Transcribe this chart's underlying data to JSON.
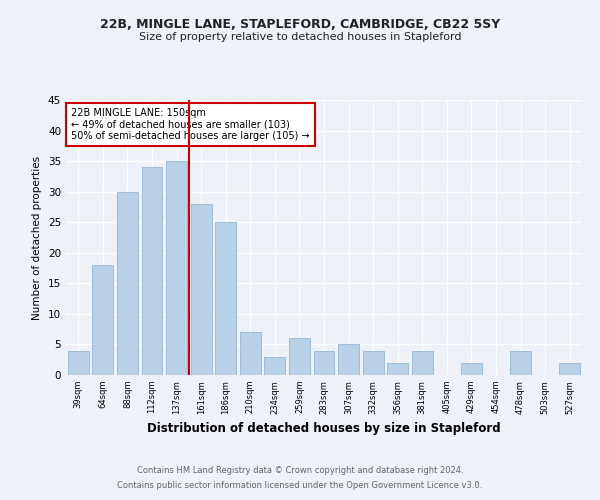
{
  "title1": "22B, MINGLE LANE, STAPLEFORD, CAMBRIDGE, CB22 5SY",
  "title2": "Size of property relative to detached houses in Stapleford",
  "xlabel": "Distribution of detached houses by size in Stapleford",
  "ylabel": "Number of detached properties",
  "footer1": "Contains HM Land Registry data © Crown copyright and database right 2024.",
  "footer2": "Contains public sector information licensed under the Open Government Licence v3.0.",
  "annotation_line1": "22B MINGLE LANE: 150sqm",
  "annotation_line2": "← 49% of detached houses are smaller (103)",
  "annotation_line3": "50% of semi-detached houses are larger (105) →",
  "categories": [
    "39sqm",
    "64sqm",
    "88sqm",
    "112sqm",
    "137sqm",
    "161sqm",
    "186sqm",
    "210sqm",
    "234sqm",
    "259sqm",
    "283sqm",
    "307sqm",
    "332sqm",
    "356sqm",
    "381sqm",
    "405sqm",
    "429sqm",
    "454sqm",
    "478sqm",
    "503sqm",
    "527sqm"
  ],
  "values": [
    4,
    18,
    30,
    34,
    35,
    28,
    25,
    7,
    3,
    6,
    4,
    5,
    4,
    2,
    4,
    0,
    2,
    0,
    4,
    0,
    2
  ],
  "bar_color": "#b8d0e8",
  "bar_edge_color": "#8ab0d0",
  "vline_x_index": 4.5,
  "vline_color": "#cc0000",
  "annotation_box_color": "#cc0000",
  "background_color": "#eef2f8",
  "grid_color": "#ffffff",
  "ylim": [
    0,
    45
  ],
  "yticks": [
    0,
    5,
    10,
    15,
    20,
    25,
    30,
    35,
    40,
    45
  ]
}
